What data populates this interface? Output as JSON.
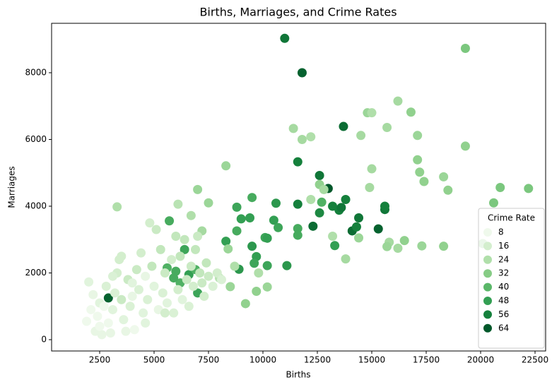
{
  "chart_data": {
    "type": "scatter",
    "title": "Births, Marriages, and Crime Rates",
    "xlabel": "Births",
    "ylabel": "Marriages",
    "xlim": [
      292,
      22987
    ],
    "ylim": [
      -339,
      9481
    ],
    "xticks": [
      2500,
      5000,
      7500,
      10000,
      12500,
      15000,
      17500,
      20000,
      22500
    ],
    "yticks": [
      0,
      2000,
      4000,
      6000,
      8000
    ],
    "grid": false,
    "legend": {
      "title": "Crime Rate",
      "position": "lower right",
      "values": [
        8,
        16,
        24,
        32,
        40,
        48,
        56,
        64
      ],
      "colors": [
        "#eff9ec",
        "#d3eecd",
        "#b0dfaa",
        "#86cc85",
        "#5ab769",
        "#339f53",
        "#15803c",
        "#00582a"
      ]
    },
    "x": [
      2900,
      11000,
      11800,
      11600,
      13700,
      12600,
      13000,
      13200,
      13500,
      13600,
      13800,
      14400,
      14100,
      14300,
      15300,
      15600,
      15600,
      12300,
      11600,
      12600,
      5700,
      5600,
      6000,
      6400,
      6600,
      6900,
      7000,
      8300,
      8800,
      8800,
      9000,
      8900,
      9400,
      9500,
      9500,
      9700,
      9600,
      10100,
      10200,
      10200,
      10500,
      10600,
      10700,
      11100,
      11600,
      11600,
      13300,
      12700,
      6200,
      5900,
      8300,
      11400,
      11800,
      12200,
      12600,
      14500,
      14800,
      15000,
      15700,
      16200,
      16800,
      17100,
      17100,
      17200,
      17400,
      18300,
      18500,
      19300,
      19300,
      20900,
      22200,
      20600,
      20100,
      18300,
      17300,
      16500,
      15800,
      15700,
      16200,
      14900,
      15000,
      13800,
      13200,
      12800,
      12200,
      14400,
      7000,
      7500,
      6700,
      8400,
      8500,
      9200,
      9700,
      10200,
      9800,
      3300,
      6100,
      7200,
      8000,
      8700,
      1900,
      2000,
      2100,
      2200,
      2300,
      2400,
      2500,
      2600,
      2800,
      2900,
      3000,
      3100,
      3200,
      3300,
      3400,
      3500,
      3600,
      3700,
      3800,
      3900,
      4000,
      4100,
      4200,
      4300,
      4400,
      4500,
      4600,
      4700,
      4800,
      4900,
      5000,
      5100,
      5200,
      5300,
      5400,
      5500,
      5600,
      5800,
      5900,
      6000,
      6100,
      6200,
      6300,
      6400,
      6500,
      6600,
      6700,
      6800,
      6900,
      7000,
      7100,
      7200,
      7300,
      7400,
      7500,
      7700,
      7900,
      8100,
      3500,
      4000,
      2700,
      3100,
      5500,
      4600,
      2500
    ],
    "y": [
      1250,
      9030,
      8000,
      5330,
      6390,
      4920,
      4530,
      4000,
      3880,
      3960,
      4200,
      3650,
      3260,
      3380,
      3320,
      3900,
      4000,
      3400,
      4060,
      3800,
      3560,
      2150,
      2050,
      2700,
      1950,
      2100,
      1400,
      2950,
      3970,
      3260,
      3620,
      2110,
      3650,
      4260,
      2800,
      2490,
      2290,
      3060,
      3040,
      2220,
      3580,
      4090,
      3360,
      2220,
      3330,
      3130,
      2820,
      4120,
      1700,
      1850,
      5210,
      6330,
      6000,
      6080,
      4650,
      6120,
      6800,
      6800,
      6360,
      7150,
      6820,
      6120,
      5390,
      5020,
      4740,
      4880,
      4480,
      8730,
      5800,
      4560,
      4530,
      4100,
      2880,
      2800,
      2810,
      2970,
      2920,
      2790,
      2740,
      4560,
      5120,
      2420,
      3100,
      4500,
      4200,
      3050,
      4500,
      4100,
      3720,
      2720,
      1590,
      1080,
      1450,
      1580,
      2000,
      3980,
      4060,
      3260,
      1850,
      2200,
      550,
      1730,
      900,
      1350,
      250,
      700,
      1100,
      150,
      1600,
      500,
      200,
      900,
      1400,
      2000,
      2400,
      1200,
      600,
      250,
      1800,
      1000,
      1300,
      300,
      2100,
      1500,
      2600,
      800,
      1900,
      1200,
      3500,
      2200,
      1600,
      3300,
      900,
      2700,
      1400,
      2000,
      1100,
      2400,
      800,
      3100,
      1500,
      2500,
      1200,
      3000,
      1800,
      1000,
      2200,
      1600,
      2700,
      3100,
      2000,
      1700,
      1300,
      2300,
      1900,
      1600,
      2000,
      1800,
      2500,
      1700,
      1000,
      1900,
      800,
      500,
      400
    ],
    "c": [
      62,
      58,
      62,
      56,
      60,
      58,
      64,
      56,
      56,
      58,
      56,
      58,
      60,
      56,
      62,
      58,
      56,
      60,
      56,
      54,
      44,
      42,
      44,
      46,
      48,
      42,
      46,
      48,
      46,
      44,
      48,
      50,
      48,
      44,
      50,
      48,
      46,
      46,
      48,
      46,
      48,
      50,
      46,
      50,
      44,
      44,
      48,
      42,
      42,
      44,
      28,
      26,
      26,
      24,
      30,
      26,
      28,
      24,
      26,
      26,
      30,
      28,
      30,
      30,
      30,
      28,
      30,
      34,
      30,
      34,
      34,
      34,
      28,
      30,
      28,
      30,
      26,
      28,
      26,
      26,
      26,
      26,
      24,
      26,
      24,
      28,
      28,
      28,
      24,
      28,
      28,
      30,
      30,
      28,
      24,
      24,
      22,
      26,
      22,
      24,
      8,
      12,
      8,
      10,
      10,
      8,
      12,
      10,
      14,
      8,
      10,
      12,
      14,
      16,
      16,
      18,
      12,
      10,
      18,
      14,
      10,
      8,
      18,
      14,
      16,
      12,
      10,
      14,
      16,
      20,
      12,
      18,
      10,
      20,
      14,
      18,
      12,
      16,
      14,
      20,
      16,
      20,
      12,
      20,
      18,
      14,
      18,
      16,
      20,
      18,
      20,
      18,
      16,
      20,
      18,
      14,
      16,
      14,
      16,
      12,
      8,
      14,
      16,
      12,
      8
    ]
  }
}
